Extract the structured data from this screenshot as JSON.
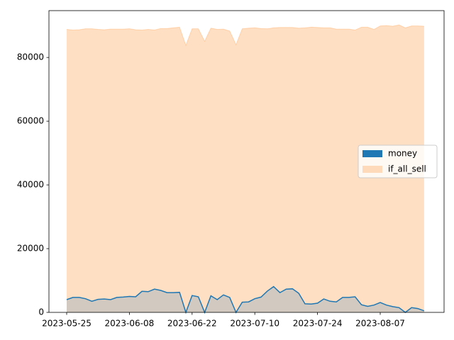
{
  "chart_data": {
    "type": "area",
    "categories": [
      "2023-05-25",
      null,
      null,
      null,
      null,
      null,
      null,
      null,
      null,
      null,
      "2023-06-08",
      null,
      null,
      null,
      null,
      null,
      null,
      null,
      null,
      null,
      "2023-06-22",
      null,
      null,
      null,
      null,
      null,
      null,
      null,
      null,
      null,
      "2023-07-10",
      null,
      null,
      null,
      null,
      null,
      null,
      null,
      null,
      null,
      "2023-07-24",
      null,
      null,
      null,
      null,
      null,
      null,
      null,
      null,
      null,
      "2023-08-07",
      null,
      null,
      null,
      null,
      null,
      null,
      null
    ],
    "series": [
      {
        "name": "money",
        "color": "#1f77b4",
        "values": [
          4000,
          4700,
          4700,
          4300,
          3500,
          4100,
          4200,
          4000,
          4700,
          4800,
          5000,
          4900,
          6600,
          6500,
          7300,
          6900,
          6200,
          6200,
          6300,
          0,
          5300,
          4900,
          0,
          5200,
          4000,
          5500,
          4700,
          0,
          3200,
          3300,
          4300,
          4800,
          6700,
          8100,
          6200,
          7300,
          7400,
          6000,
          2700,
          2600,
          2900,
          4200,
          3500,
          3300,
          4700,
          4700,
          4900,
          2400,
          1900,
          2300,
          3100,
          2300,
          1800,
          1500,
          0,
          1500,
          1200,
          500
        ]
      },
      {
        "name": "if_all_sell",
        "color": "#ff7f0e",
        "values": [
          88800,
          88600,
          88700,
          89000,
          89000,
          88800,
          88700,
          88900,
          88900,
          88900,
          89000,
          88700,
          88600,
          88800,
          88600,
          89100,
          89100,
          89300,
          89500,
          83800,
          89000,
          89000,
          85100,
          89200,
          88800,
          88900,
          88300,
          84000,
          89000,
          89200,
          89300,
          89100,
          89000,
          89300,
          89400,
          89400,
          89400,
          89200,
          89300,
          89500,
          89400,
          89300,
          89300,
          88900,
          88900,
          88900,
          88600,
          89500,
          89500,
          88800,
          89900,
          90000,
          89800,
          90200,
          89300,
          89900,
          89900,
          89800
        ]
      }
    ],
    "ylim": [
      0,
      94700
    ],
    "yticks": [
      0,
      20000,
      40000,
      60000,
      80000
    ],
    "legend": "center right"
  }
}
